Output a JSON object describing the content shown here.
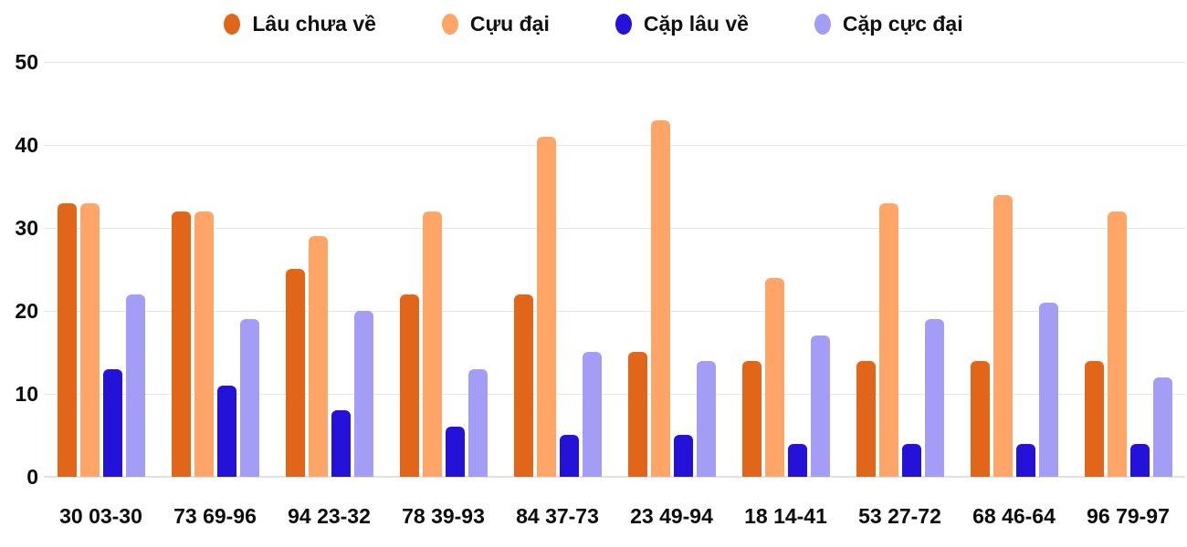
{
  "legend": {
    "items": [
      {
        "label": "Lâu chưa về",
        "color": "#e2661a",
        "marker": "circle-icon"
      },
      {
        "label": "Cựu đại",
        "color": "#ffa567",
        "marker": "circle-icon"
      },
      {
        "label": "Cặp lâu về",
        "color": "#2412d9",
        "marker": "circle-icon"
      },
      {
        "label": "Cặp cực đại",
        "color": "#a39df6",
        "marker": "circle-icon"
      }
    ]
  },
  "chart_data": {
    "type": "bar",
    "title": "",
    "xlabel": "",
    "ylabel": "",
    "categories": [
      "30 03-30",
      "73 69-96",
      "94 23-32",
      "78 39-93",
      "84 37-73",
      "23 49-94",
      "18 14-41",
      "53 27-72",
      "68 46-64",
      "96 79-97"
    ],
    "series": [
      {
        "name": "Lâu chưa về",
        "color": "#e2661a",
        "values": [
          33,
          32,
          25,
          22,
          22,
          15,
          14,
          14,
          14,
          14
        ]
      },
      {
        "name": "Cựu đại",
        "color": "#ffa567",
        "values": [
          33,
          32,
          29,
          32,
          41,
          43,
          24,
          33,
          34,
          32
        ]
      },
      {
        "name": "Cặp lâu về",
        "color": "#2412d9",
        "values": [
          13,
          11,
          8,
          6,
          5,
          5,
          4,
          4,
          4,
          4
        ]
      },
      {
        "name": "Cặp cực đại",
        "color": "#a39df6",
        "values": [
          22,
          19,
          20,
          13,
          15,
          14,
          17,
          19,
          21,
          12
        ]
      }
    ],
    "ylim": [
      0,
      50
    ],
    "yticks": [
      0,
      10,
      20,
      30,
      40,
      50
    ],
    "grid": true,
    "legend_position": "top",
    "grid_color": "#e6e6e6",
    "tick_label_color": "#0d0d0d"
  }
}
